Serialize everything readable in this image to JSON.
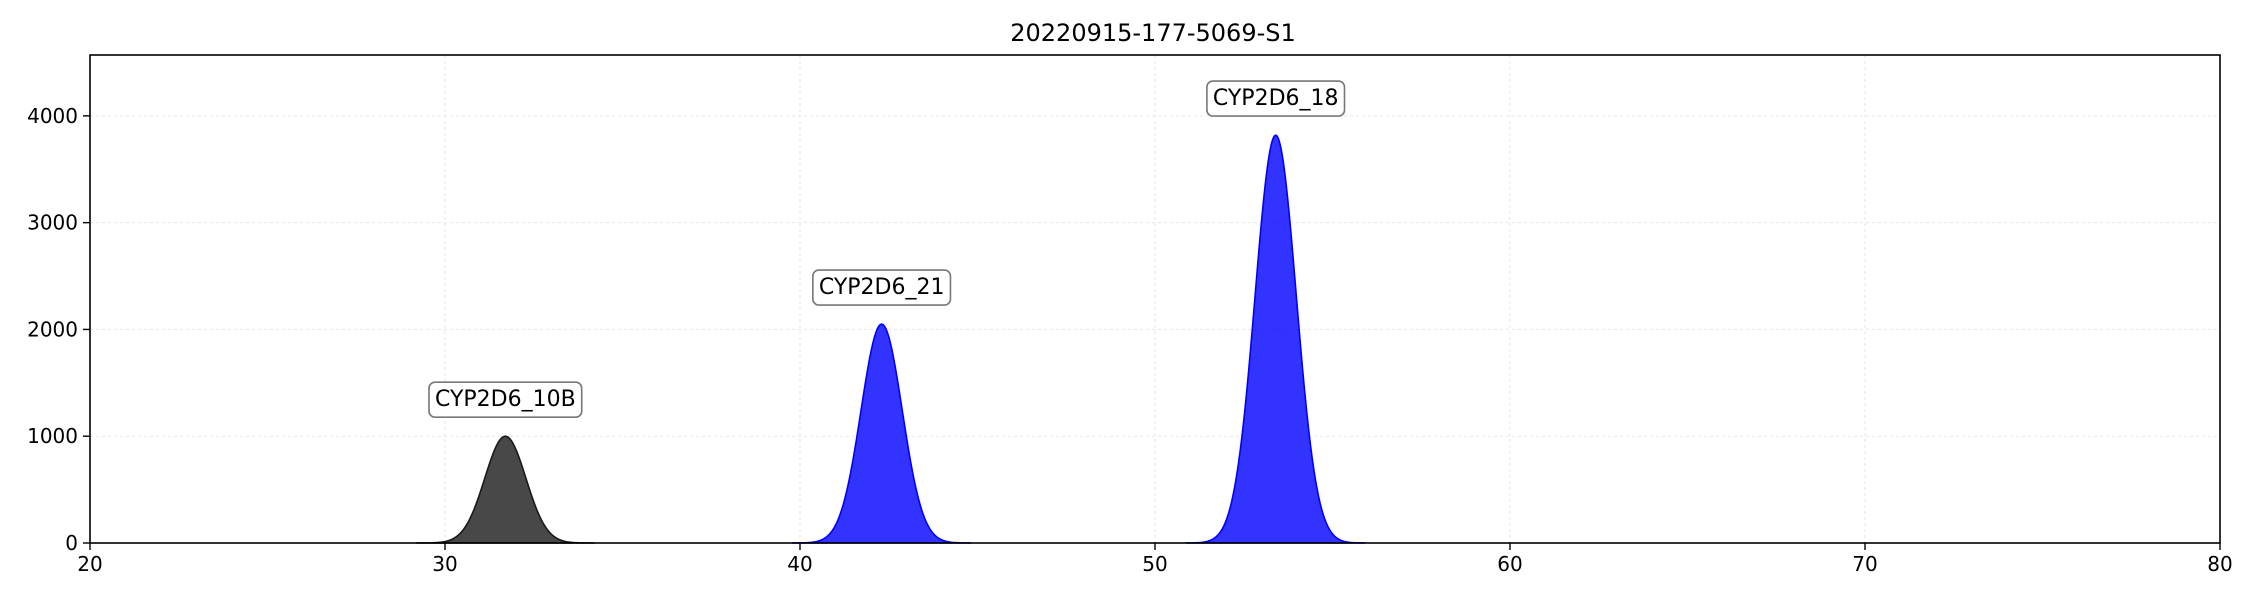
{
  "chart_data": {
    "type": "area",
    "title": "20220915-177-5069-S1",
    "xlabel": "",
    "ylabel": "",
    "xlim": [
      20,
      80
    ],
    "ylim": [
      0,
      4570
    ],
    "x_ticks": [
      20,
      30,
      40,
      50,
      60,
      70,
      80
    ],
    "y_ticks": [
      0,
      1000,
      2000,
      3000,
      4000
    ],
    "grid": true,
    "legend": "none",
    "series": [
      {
        "label": "CYP2D6_10B",
        "center": 31.7,
        "peak_height": 1000,
        "sigma": 0.58,
        "x_from": 29.2,
        "x_to": 34.2,
        "color": "#1a1a1a"
      },
      {
        "label": "CYP2D6_21",
        "center": 42.3,
        "peak_height": 2050,
        "sigma": 0.58,
        "x_from": 39.8,
        "x_to": 44.8,
        "color": "#0000ff"
      },
      {
        "label": "CYP2D6_18",
        "center": 53.4,
        "peak_height": 3820,
        "sigma": 0.58,
        "x_from": 50.9,
        "x_to": 55.9,
        "color": "#0000ff"
      }
    ]
  }
}
